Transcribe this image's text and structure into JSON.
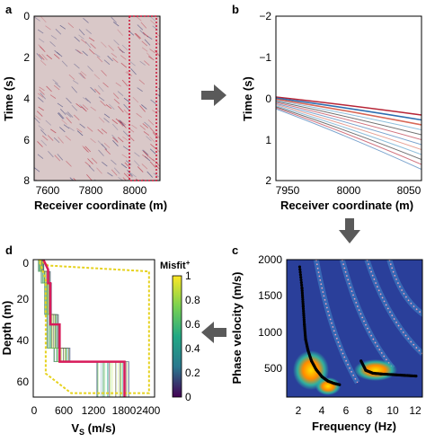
{
  "figure": {
    "panels": [
      {
        "id": "a",
        "label": "a",
        "xlabel": "Receiver coordinate (m)",
        "ylabel": "Time (s)",
        "xticks": [
          "7600",
          "7800",
          "8000"
        ],
        "yticks": [
          "0",
          "2",
          "4",
          "6",
          "8"
        ],
        "xlim": [
          7540,
          8120
        ],
        "ylim": [
          0,
          8
        ],
        "highlight_box": {
          "x": [
            7930,
            8045
          ],
          "y": [
            0,
            8
          ],
          "color": "#cc1133"
        }
      },
      {
        "id": "b",
        "label": "b",
        "xlabel": "Receiver coordinate (m)",
        "ylabel": "Time (s)",
        "xticks": [
          "7950",
          "8000",
          "8050"
        ],
        "yticks": [
          "−2",
          "−1",
          "0",
          "1",
          "2"
        ],
        "xlim": [
          7940,
          8060
        ],
        "ylim": [
          -2,
          2
        ]
      },
      {
        "id": "c",
        "label": "c",
        "xlabel": "Frequency (Hz)",
        "ylabel": "Phase velocity (m/s)",
        "xticks": [
          "2",
          "4",
          "6",
          "8",
          "10",
          "12"
        ],
        "yticks": [
          "2000",
          "1500",
          "1000",
          "500"
        ],
        "xlim": [
          0.5,
          12
        ],
        "ylim": [
          100,
          2000
        ]
      },
      {
        "id": "d",
        "label": "d",
        "xlabel": "V",
        "xlabel_sub": "S",
        "xlabel_unit": " (m/s)",
        "ylabel": "Depth (m)",
        "xticks": [
          "0",
          "600",
          "1200",
          "1800",
          "2400"
        ],
        "yticks": [
          "0",
          "20",
          "40",
          "60"
        ],
        "xlim": [
          0,
          2600
        ],
        "ylim": [
          0,
          70
        ],
        "colorbar": {
          "title": "Misfit",
          "title_sup": "+",
          "ticks": [
            "1",
            "0.8",
            "0.6",
            "0.4",
            "0.2",
            "0"
          ]
        }
      }
    ],
    "arrows": [
      "a-to-b",
      "b-to-c",
      "c-to-d"
    ]
  },
  "chart_data": [
    {
      "panel": "c",
      "type": "scatter",
      "series": [
        {
          "values": [
            [
              1.6,
              1900
            ],
            [
              1.8,
              1600
            ],
            [
              1.9,
              1350
            ],
            [
              2.0,
              1100
            ],
            [
              2.1,
              900
            ],
            [
              2.3,
              750
            ],
            [
              2.6,
              600
            ],
            [
              3.0,
              480
            ],
            [
              3.5,
              380
            ],
            [
              4.0,
              320
            ],
            [
              4.5,
              290
            ],
            [
              5.0,
              270
            ]
          ]
        },
        {
          "values": [
            [
              6.8,
              600
            ],
            [
              7.2,
              470
            ],
            [
              7.8,
              430
            ],
            [
              8.5,
              420
            ],
            [
              9.5,
              410
            ],
            [
              10.5,
              400
            ],
            [
              11.5,
              390
            ]
          ]
        }
      ]
    },
    {
      "panel": "d",
      "type": "line",
      "series": [
        {
          "values": [
            [
              200,
              0
            ],
            [
              300,
              5
            ],
            [
              300,
              12
            ],
            [
              350,
              12
            ],
            [
              350,
              20
            ],
            [
              350,
              33
            ],
            [
              550,
              33
            ],
            [
              550,
              40
            ],
            [
              550,
              52
            ],
            [
              1950,
              52
            ],
            [
              1950,
              62
            ],
            [
              1950,
              70
            ]
          ]
        }
      ]
    }
  ]
}
